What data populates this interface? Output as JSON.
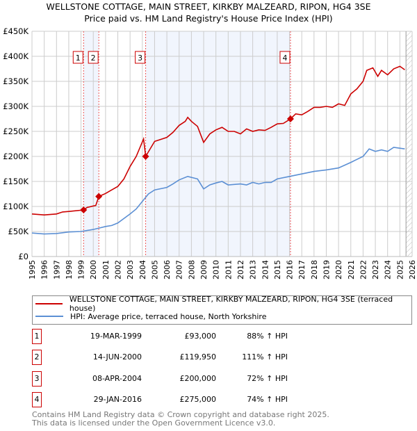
{
  "title": "WELLSTONE COTTAGE, MAIN STREET, KIRKBY MALZEARD, RIPON, HG4 3SE",
  "subtitle": "Price paid vs. HM Land Registry's House Price Index (HPI)",
  "chart_data": {
    "type": "line",
    "xlim": [
      1995,
      2026
    ],
    "ylim": [
      0,
      450000
    ],
    "yticks": [
      0,
      50000,
      100000,
      150000,
      200000,
      250000,
      300000,
      350000,
      400000,
      450000
    ],
    "ytick_labels": [
      "£0",
      "£50K",
      "£100K",
      "£150K",
      "£200K",
      "£250K",
      "£300K",
      "£350K",
      "£400K",
      "£450K"
    ],
    "xticks": [
      1995,
      1996,
      1997,
      1998,
      1999,
      2000,
      2001,
      2002,
      2003,
      2004,
      2005,
      2006,
      2007,
      2008,
      2009,
      2010,
      2011,
      2012,
      2013,
      2014,
      2015,
      2016,
      2017,
      2018,
      2019,
      2020,
      2021,
      2022,
      2023,
      2024,
      2025,
      2026
    ],
    "grid": true,
    "forecast_hatch_from": 2025.5,
    "shaded_ranges": [
      [
        1999.21,
        2000.45
      ],
      [
        2004.27,
        2016.08
      ]
    ],
    "series": [
      {
        "name": "WELLSTONE COTTAGE, MAIN STREET, KIRKBY MALZEARD, RIPON, HG4 3SE (terraced house)",
        "color": "#cc0000",
        "x": [
          1995,
          1996,
          1997,
          1997.5,
          1998,
          1999.21,
          1999.5,
          2000,
          2000.2,
          2000.45,
          2001,
          2001.5,
          2002,
          2002.5,
          2003,
          2003.5,
          2004.1,
          2004.27,
          2005,
          2006,
          2006.5,
          2007,
          2007.5,
          2007.7,
          2008,
          2008.5,
          2009,
          2009.5,
          2010,
          2010.5,
          2011,
          2011.5,
          2012,
          2012.5,
          2013,
          2013.5,
          2014,
          2014.5,
          2015,
          2015.5,
          2016.08,
          2016.5,
          2017,
          2017.5,
          2018,
          2018.5,
          2019,
          2019.5,
          2020,
          2020.5,
          2021,
          2021.5,
          2022,
          2022.3,
          2022.8,
          2023.2,
          2023.5,
          2024,
          2024.5,
          2025,
          2025.4
        ],
        "y": [
          85000,
          83000,
          85000,
          89000,
          90000,
          93000,
          98000,
          101000,
          102000,
          119950,
          126000,
          133000,
          140000,
          155000,
          180000,
          200000,
          235000,
          200000,
          230000,
          238000,
          248000,
          262000,
          270000,
          278000,
          270000,
          260000,
          228000,
          245000,
          253000,
          258000,
          250000,
          250000,
          245000,
          255000,
          250000,
          253000,
          252000,
          258000,
          265000,
          266000,
          275000,
          285000,
          283000,
          290000,
          298000,
          298000,
          300000,
          298000,
          305000,
          302000,
          325000,
          335000,
          350000,
          372000,
          377000,
          360000,
          372000,
          363000,
          375000,
          380000,
          373000
        ]
      },
      {
        "name": "HPI: Average price, terraced house, North Yorkshire",
        "color": "#5b8fd4",
        "x": [
          1995,
          1996,
          1997,
          1998,
          1999,
          2000,
          2000.5,
          2001,
          2001.5,
          2002,
          2003,
          2003.5,
          2004,
          2004.5,
          2005,
          2006,
          2006.5,
          2007,
          2007.7,
          2008.5,
          2009,
          2009.5,
          2010,
          2010.5,
          2011,
          2012,
          2012.5,
          2013,
          2013.5,
          2014,
          2014.5,
          2015,
          2016,
          2017,
          2018,
          2019,
          2020,
          2021,
          2022,
          2022.5,
          2023,
          2023.5,
          2024,
          2024.5,
          2025.4
        ],
        "y": [
          47000,
          45000,
          46000,
          49000,
          50000,
          54000,
          57000,
          60000,
          62000,
          67000,
          85000,
          95000,
          110000,
          125000,
          133000,
          138000,
          145000,
          153000,
          160000,
          155000,
          135000,
          143000,
          147000,
          150000,
          143000,
          145000,
          143000,
          148000,
          145000,
          148000,
          148000,
          155000,
          160000,
          165000,
          170000,
          173000,
          177000,
          188000,
          200000,
          215000,
          210000,
          213000,
          210000,
          218000,
          215000
        ]
      }
    ],
    "sales": [
      {
        "id": "1",
        "x": 1999.21,
        "y": 93000
      },
      {
        "id": "2",
        "x": 2000.45,
        "y": 119950
      },
      {
        "id": "3",
        "x": 2004.27,
        "y": 200000
      },
      {
        "id": "4",
        "x": 2016.08,
        "y": 275000
      }
    ]
  },
  "legend": {
    "property": "WELLSTONE COTTAGE, MAIN STREET, KIRKBY MALZEARD, RIPON, HG4 3SE (terraced house)",
    "hpi": "HPI: Average price, terraced house, North Yorkshire"
  },
  "transactions": [
    {
      "id": "1",
      "date": "19-MAR-1999",
      "price": "£93,000",
      "hpi": "88% ↑ HPI"
    },
    {
      "id": "2",
      "date": "14-JUN-2000",
      "price": "£119,950",
      "hpi": "111% ↑ HPI"
    },
    {
      "id": "3",
      "date": "08-APR-2004",
      "price": "£200,000",
      "hpi": "72% ↑ HPI"
    },
    {
      "id": "4",
      "date": "29-JAN-2016",
      "price": "£275,000",
      "hpi": "74% ↑ HPI"
    }
  ],
  "footer": {
    "line1": "Contains HM Land Registry data © Crown copyright and database right 2025.",
    "line2": "This data is licensed under the Open Government Licence v3.0."
  }
}
